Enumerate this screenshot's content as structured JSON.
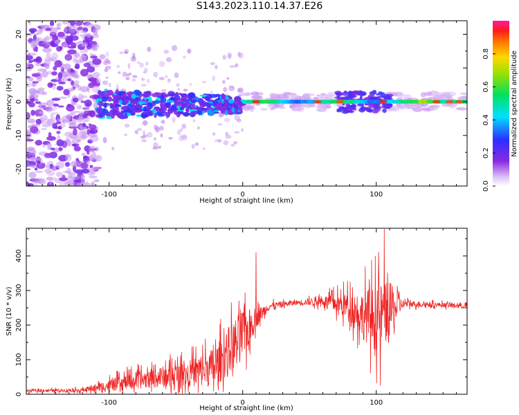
{
  "title": "S143.2023.110.14.37.E26",
  "colors": {
    "snr_line": "#ee2222",
    "frame": "#000000",
    "background": "#ffffff",
    "spectrogram_background": "#ffffff"
  },
  "chart_data": [
    {
      "type": "heatmap",
      "xlabel": "Height of straight line (km)",
      "ylabel": "Frequency (Hz)",
      "xlim": [
        -162,
        168
      ],
      "ylim": [
        -25,
        24
      ],
      "x_ticks": [
        -100,
        0,
        100
      ],
      "y_ticks": [
        -20,
        -10,
        0,
        10,
        20
      ],
      "grid": false,
      "colorbar": {
        "label": "Normalized spectral amplitude",
        "range": [
          0,
          1
        ],
        "ticks": [
          0.0,
          0.2,
          0.4,
          0.6,
          0.8
        ],
        "colormap": "rainbow (white → purple → blue → cyan → green → yellow → orange → red → pink)"
      },
      "features": {
        "noise_region_x": [
          -162,
          -108
        ],
        "scattered_echo_x": [
          -108,
          0
        ],
        "coherent_line_x": [
          0,
          168
        ],
        "line_frequency_hz": 0
      }
    },
    {
      "type": "line",
      "xlabel": "Height of straight line (km)",
      "ylabel": "SNR (10 * v/v)",
      "xlim": [
        -162,
        168
      ],
      "ylim": [
        0,
        480
      ],
      "x_ticks": [
        -100,
        0,
        100
      ],
      "y_ticks": [
        0,
        100,
        200,
        300,
        400
      ],
      "grid": false,
      "series": [
        {
          "envelope_x": [
            -162,
            -120,
            -100,
            -80,
            -60,
            -40,
            -20,
            -10,
            0,
            10,
            20,
            40,
            60,
            80,
            90,
            100,
            110,
            120,
            140,
            168
          ],
          "envelope_y": [
            10,
            12,
            25,
            40,
            50,
            60,
            80,
            130,
            170,
            220,
            255,
            265,
            270,
            255,
            230,
            220,
            240,
            262,
            260,
            255
          ],
          "noise_amplitude": [
            4,
            8,
            25,
            35,
            45,
            55,
            85,
            100,
            110,
            40,
            15,
            10,
            20,
            60,
            100,
            140,
            120,
            15,
            10,
            10
          ],
          "spikes": [
            {
              "x": 10,
              "y": 410
            },
            {
              "x": 106,
              "y": 478
            },
            {
              "x": 103,
              "y": 25
            }
          ]
        }
      ]
    }
  ]
}
